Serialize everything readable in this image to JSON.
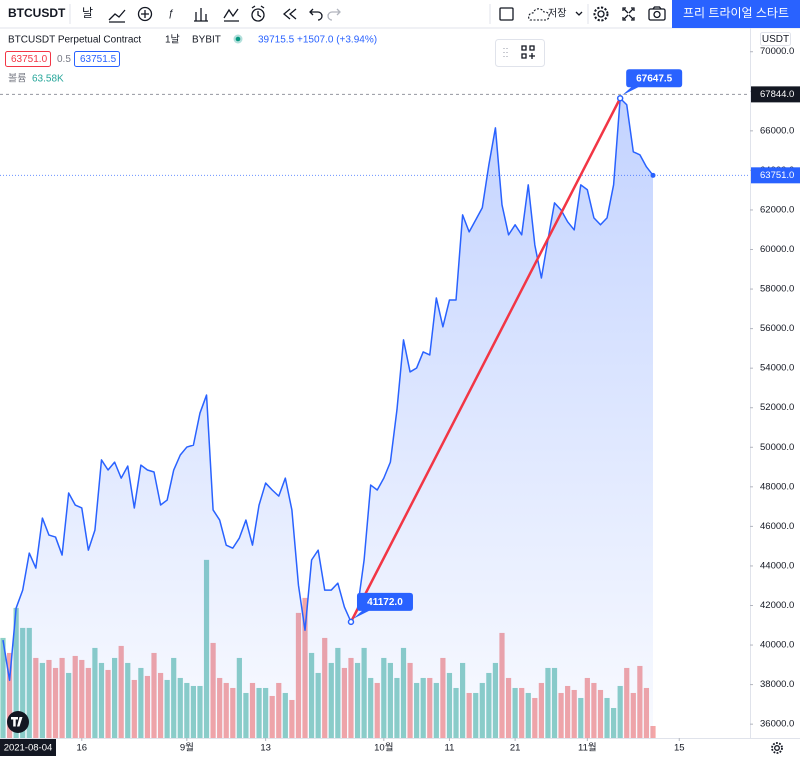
{
  "toolbar": {
    "symbol": "BTCUSDT",
    "interval": "날",
    "save": "저장",
    "trial_button": "프리 트라이얼 스타트"
  },
  "chart_data": {
    "type": "area",
    "symbol_title": "BTCUSDT Perpetual Contract",
    "interval": "1날",
    "exchange": "BYBIT",
    "ohlc_price": "39715.5",
    "change": "+1507.0 (+3.94%)",
    "bid": "63751.0",
    "spread": "0.5",
    "ask": "63751.5",
    "volume_label": "볼륨",
    "volume_value": "63.58K",
    "currency": "USDT",
    "crosshair_date": "2021-08-04",
    "crosshair_price": {
      "value": 67844,
      "label": "67844.0"
    },
    "last_price": {
      "value": 63751,
      "label": "63751.0"
    },
    "color": "#2962ff",
    "trend_color": "#f23645",
    "volume_up_color": "#8dd0c7",
    "volume_down_color": "#f5a6a6",
    "grid": false,
    "x": [
      "2021-08-04",
      "2021-08-05",
      "2021-08-06",
      "2021-08-07",
      "2021-08-08",
      "2021-08-09",
      "2021-08-10",
      "2021-08-11",
      "2021-08-12",
      "2021-08-13",
      "2021-08-14",
      "2021-08-15",
      "2021-08-16",
      "2021-08-17",
      "2021-08-18",
      "2021-08-19",
      "2021-08-20",
      "2021-08-21",
      "2021-08-22",
      "2021-08-23",
      "2021-08-24",
      "2021-08-25",
      "2021-08-26",
      "2021-08-27",
      "2021-08-28",
      "2021-08-29",
      "2021-08-30",
      "2021-08-31",
      "2021-09-01",
      "2021-09-02",
      "2021-09-03",
      "2021-09-04",
      "2021-09-05",
      "2021-09-06",
      "2021-09-07",
      "2021-09-08",
      "2021-09-09",
      "2021-09-10",
      "2021-09-11",
      "2021-09-12",
      "2021-09-13",
      "2021-09-14",
      "2021-09-15",
      "2021-09-16",
      "2021-09-17",
      "2021-09-18",
      "2021-09-19",
      "2021-09-20",
      "2021-09-21",
      "2021-09-22",
      "2021-09-23",
      "2021-09-24",
      "2021-09-25",
      "2021-09-26",
      "2021-09-27",
      "2021-09-28",
      "2021-09-29",
      "2021-09-30",
      "2021-10-01",
      "2021-10-02",
      "2021-10-03",
      "2021-10-04",
      "2021-10-05",
      "2021-10-06",
      "2021-10-07",
      "2021-10-08",
      "2021-10-09",
      "2021-10-10",
      "2021-10-11",
      "2021-10-12",
      "2021-10-13",
      "2021-10-14",
      "2021-10-15",
      "2021-10-16",
      "2021-10-17",
      "2021-10-18",
      "2021-10-19",
      "2021-10-20",
      "2021-10-21",
      "2021-10-22",
      "2021-10-23",
      "2021-10-24",
      "2021-10-25",
      "2021-10-26",
      "2021-10-27",
      "2021-10-28",
      "2021-10-29",
      "2021-10-30",
      "2021-10-31",
      "2021-11-01",
      "2021-11-02",
      "2021-11-03",
      "2021-11-04",
      "2021-11-05",
      "2021-11-06",
      "2021-11-07",
      "2021-11-08",
      "2021-11-09",
      "2021-11-10",
      "2021-11-11"
    ],
    "values": [
      40250,
      38220,
      41870,
      42780,
      44650,
      43890,
      46420,
      45560,
      45460,
      44550,
      47690,
      47080,
      46930,
      44800,
      45810,
      49360,
      48850,
      49250,
      48440,
      49050,
      46930,
      49100,
      48850,
      48750,
      47080,
      47330,
      48850,
      49610,
      50010,
      50110,
      51730,
      52640,
      46830,
      46320,
      45050,
      44900,
      45410,
      46320,
      45050,
      47080,
      48190,
      47840,
      47530,
      48440,
      46830,
      43030,
      40750,
      44300,
      44800,
      42780,
      42780,
      43130,
      41920,
      41172,
      41870,
      44300,
      48090,
      47840,
      48440,
      49250,
      51890,
      55430,
      53810,
      54010,
      54820,
      54670,
      57550,
      56090,
      57450,
      57450,
      61750,
      60890,
      61500,
      62110,
      64280,
      66150,
      62260,
      60740,
      61250,
      60740,
      63270,
      60230,
      58560,
      60490,
      62360,
      62000,
      61400,
      60990,
      63270,
      63020,
      61600,
      61250,
      61600,
      63270,
      67647.5,
      67320,
      64940,
      64790,
      64180,
      63751
    ],
    "value_labels": [
      null,
      null,
      null,
      null,
      null,
      null,
      null,
      null,
      null,
      null,
      null,
      null,
      null,
      null,
      null,
      null,
      null,
      null,
      null,
      null,
      null,
      null,
      null,
      null,
      null,
      null,
      null,
      null,
      null,
      null,
      null,
      null,
      null,
      null,
      null,
      null,
      null,
      null,
      null,
      null,
      null,
      null,
      null,
      null,
      null,
      null,
      null,
      null,
      null,
      null,
      null,
      null,
      null,
      "41172.0",
      null,
      null,
      null,
      null,
      null,
      null,
      null,
      null,
      null,
      null,
      null,
      null,
      null,
      null,
      null,
      null,
      null,
      null,
      null,
      null,
      null,
      null,
      null,
      null,
      null,
      null,
      null,
      null,
      null,
      null,
      null,
      null,
      null,
      null,
      null,
      null,
      null,
      null,
      null,
      null,
      "67647.5",
      null,
      null,
      null,
      null,
      null
    ],
    "volume": [
      530000,
      450500,
      689000,
      583000,
      583000,
      424000,
      397500,
      413400,
      371000,
      424000,
      344500,
      434600,
      413400,
      371000,
      477000,
      397500,
      360400,
      424000,
      487600,
      397500,
      307400,
      371000,
      328600,
      450500,
      344500,
      307400,
      424000,
      318000,
      291500,
      275600,
      275600,
      943400,
      503500,
      318000,
      291500,
      265000,
      424000,
      238500,
      291500,
      265000,
      265000,
      222600,
      291500,
      238500,
      201400,
      662500,
      742000,
      450500,
      344500,
      530000,
      397500,
      477000,
      371000,
      424000,
      397500,
      477000,
      318000,
      291500,
      424000,
      397500,
      318000,
      477000,
      397500,
      291500,
      318000,
      318000,
      291500,
      424000,
      344500,
      265000,
      397500,
      238500,
      238500,
      291500,
      344500,
      397500,
      556500,
      318000,
      265000,
      265000,
      238500,
      212000,
      291500,
      371000,
      371000,
      238500,
      275600,
      254400,
      212000,
      318000,
      291500,
      254400,
      212000,
      159000,
      275600,
      371000,
      238500,
      381600,
      265000,
      63580
    ],
    "volume_lim": [
      0,
      3760000
    ],
    "ylim": [
      35300,
      71200
    ],
    "yticks": [
      {
        "value": 36000,
        "label": "36000.0"
      },
      {
        "value": 38000,
        "label": "38000.0"
      },
      {
        "value": 40000,
        "label": "40000.0"
      },
      {
        "value": 42000,
        "label": "42000.0"
      },
      {
        "value": 44000,
        "label": "44000.0"
      },
      {
        "value": 46000,
        "label": "46000.0"
      },
      {
        "value": 48000,
        "label": "48000.0"
      },
      {
        "value": 50000,
        "label": "50000.0"
      },
      {
        "value": 52000,
        "label": "52000.0"
      },
      {
        "value": 54000,
        "label": "54000.0"
      },
      {
        "value": 56000,
        "label": "56000.0"
      },
      {
        "value": 58000,
        "label": "58000.0"
      },
      {
        "value": 60000,
        "label": "60000.0"
      },
      {
        "value": 62000,
        "label": "62000.0"
      },
      {
        "value": 64000,
        "label": "64000.0"
      },
      {
        "value": 66000,
        "label": "66000.0"
      },
      {
        "value": 68000,
        "label": "68000.0"
      },
      {
        "value": 70000,
        "label": "70000.0"
      }
    ],
    "xticks": [
      {
        "value": "2021-08-16",
        "label": "16"
      },
      {
        "value": "2021-09-01",
        "label": "9월"
      },
      {
        "value": "2021-09-13",
        "label": "13"
      },
      {
        "value": "2021-10-01",
        "label": "10월"
      },
      {
        "value": "2021-10-11",
        "label": "11"
      },
      {
        "value": "2021-10-21",
        "label": "21"
      },
      {
        "value": "2021-11-01",
        "label": "11월"
      },
      {
        "value": "2021-11-15",
        "label": "15"
      }
    ]
  }
}
